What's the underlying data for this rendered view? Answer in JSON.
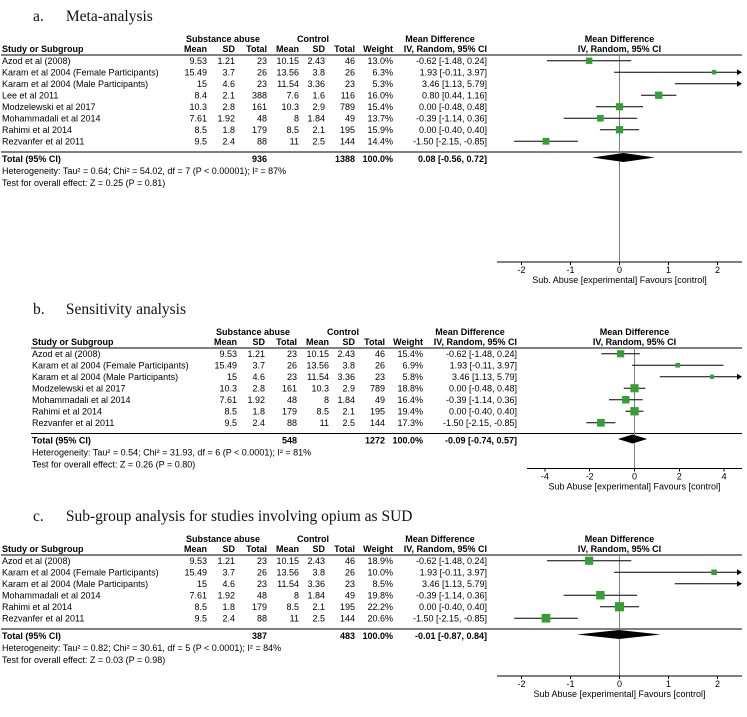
{
  "colors": {
    "marker_square": "#33a033",
    "ci_line": "#000000",
    "diamond": "#000000",
    "rule": "#000000",
    "zero_line": "#808080",
    "axis": "#000000"
  },
  "chart_data": [
    {
      "type": "forest",
      "panel_label": "a.",
      "panel_title": "Meta-analysis",
      "header": {
        "group1": "Substance abuse",
        "group2": "Control",
        "study_col": "Study or Subgroup",
        "subcols": [
          "Mean",
          "SD",
          "Total",
          "Mean",
          "SD",
          "Total",
          "Weight"
        ],
        "effect_col_line1": "Mean Difference",
        "effect_col_line2": "IV, Random, 95% CI",
        "plot_col_line1": "Mean Difference",
        "plot_col_line2": "IV, Random, 95% CI"
      },
      "studies": [
        {
          "name": "Azod et al (2008)",
          "mean1": "9.53",
          "sd1": "1.21",
          "total1": "23",
          "mean2": "10.15",
          "sd2": "2.43",
          "total2": "46",
          "weight": "13.0%",
          "weight_pct": 13.0,
          "ci_label": "-0.62 [-1.48, 0.24]",
          "est": -0.62,
          "lo": -1.48,
          "hi": 0.24
        },
        {
          "name": "Karam et al 2004 (Female Participants)",
          "mean1": "15.49",
          "sd1": "3.7",
          "total1": "26",
          "mean2": "13.56",
          "sd2": "3.8",
          "total2": "26",
          "weight": "6.3%",
          "weight_pct": 6.3,
          "ci_label": "1.93 [-0.11, 3.97]",
          "est": 1.93,
          "lo": -0.11,
          "hi": 3.97
        },
        {
          "name": "Karam et al 2004 (Male Participants)",
          "mean1": "15",
          "sd1": "4.6",
          "total1": "23",
          "mean2": "11.54",
          "sd2": "3.36",
          "total2": "23",
          "weight": "5.3%",
          "weight_pct": 5.3,
          "ci_label": "3.46 [1.13, 5.79]",
          "est": 3.46,
          "lo": 1.13,
          "hi": 5.79
        },
        {
          "name": "Lee et al 2011",
          "mean1": "8.4",
          "sd1": "2.1",
          "total1": "388",
          "mean2": "7.6",
          "sd2": "1.6",
          "total2": "116",
          "weight": "16.0%",
          "weight_pct": 16.0,
          "ci_label": "0.80 [0.44, 1.16]",
          "est": 0.8,
          "lo": 0.44,
          "hi": 1.16
        },
        {
          "name": "Modzelewski et al 2017",
          "mean1": "10.3",
          "sd1": "2.8",
          "total1": "161",
          "mean2": "10.3",
          "sd2": "2.9",
          "total2": "789",
          "weight": "15.4%",
          "weight_pct": 15.4,
          "ci_label": "0.00 [-0.48, 0.48]",
          "est": 0.0,
          "lo": -0.48,
          "hi": 0.48
        },
        {
          "name": "Mohammadali et al 2014",
          "mean1": "7.61",
          "sd1": "1.92",
          "total1": "48",
          "mean2": "8",
          "sd2": "1.84",
          "total2": "49",
          "weight": "13.7%",
          "weight_pct": 13.7,
          "ci_label": "-0.39 [-1.14, 0.36]",
          "est": -0.39,
          "lo": -1.14,
          "hi": 0.36
        },
        {
          "name": "Rahimi et al 2014",
          "mean1": "8.5",
          "sd1": "1.8",
          "total1": "179",
          "mean2": "8.5",
          "sd2": "2.1",
          "total2": "195",
          "weight": "15.9%",
          "weight_pct": 15.9,
          "ci_label": "0.00 [-0.40, 0.40]",
          "est": 0.0,
          "lo": -0.4,
          "hi": 0.4
        },
        {
          "name": "Rezvanfer et al 2011",
          "mean1": "9.5",
          "sd1": "2.4",
          "total1": "88",
          "mean2": "11",
          "sd2": "2.5",
          "total2": "144",
          "weight": "14.4%",
          "weight_pct": 14.4,
          "ci_label": "-1.50 [-2.15, -0.85]",
          "est": -1.5,
          "lo": -2.15,
          "hi": -0.85
        }
      ],
      "total_row": {
        "label": "Total (95% CI)",
        "total1": "936",
        "total2": "1388",
        "weight": "100.0%",
        "ci_label": "0.08 [-0.56, 0.72]",
        "est": 0.08,
        "lo": -0.56,
        "hi": 0.72
      },
      "heterogeneity": "Heterogeneity: Tau² = 0.64; Chi² = 54.02, df = 7 (P < 0.00001); I² = 87%",
      "overall_effect": "Test for overall effect: Z = 0.25 (P = 0.81)",
      "axis": {
        "ticks": [
          -2,
          -1,
          0,
          1,
          2
        ],
        "min": -2.5,
        "max": 2.5,
        "caption": "Sub. Abuse [experimental]   Favours [control]"
      }
    },
    {
      "type": "forest",
      "panel_label": "b.",
      "panel_title": "Sensitivity analysis",
      "header": {
        "group1": "Substance abuse",
        "group2": "Control",
        "study_col": "Study or Subgroup",
        "subcols": [
          "Mean",
          "SD",
          "Total",
          "Mean",
          "SD",
          "Total",
          "Weight"
        ],
        "effect_col_line1": "Mean Difference",
        "effect_col_line2": "IV, Random, 95% CI",
        "plot_col_line1": "Mean Difference",
        "plot_col_line2": "IV, Random, 95% CI"
      },
      "studies": [
        {
          "name": "Azod et al (2008)",
          "mean1": "9.53",
          "sd1": "1.21",
          "total1": "23",
          "mean2": "10.15",
          "sd2": "2.43",
          "total2": "46",
          "weight": "15.4%",
          "weight_pct": 15.4,
          "ci_label": "-0.62 [-1.48, 0.24]",
          "est": -0.62,
          "lo": -1.48,
          "hi": 0.24
        },
        {
          "name": "Karam et al 2004 (Female Participants)",
          "mean1": "15.49",
          "sd1": "3.7",
          "total1": "26",
          "mean2": "13.56",
          "sd2": "3.8",
          "total2": "26",
          "weight": "6.9%",
          "weight_pct": 6.9,
          "ci_label": "1.93 [-0.11, 3.97]",
          "est": 1.93,
          "lo": -0.11,
          "hi": 3.97
        },
        {
          "name": "Karam et al 2004 (Male Participants)",
          "mean1": "15",
          "sd1": "4.6",
          "total1": "23",
          "mean2": "11.54",
          "sd2": "3.36",
          "total2": "23",
          "weight": "5.8%",
          "weight_pct": 5.8,
          "ci_label": "3.46 [1.13, 5.79]",
          "est": 3.46,
          "lo": 1.13,
          "hi": 5.79
        },
        {
          "name": "Modzelewski et al 2017",
          "mean1": "10.3",
          "sd1": "2.8",
          "total1": "161",
          "mean2": "10.3",
          "sd2": "2.9",
          "total2": "789",
          "weight": "18.8%",
          "weight_pct": 18.8,
          "ci_label": "0.00 [-0.48, 0.48]",
          "est": 0.0,
          "lo": -0.48,
          "hi": 0.48
        },
        {
          "name": "Mohammadali et al 2014",
          "mean1": "7.61",
          "sd1": "1.92",
          "total1": "48",
          "mean2": "8",
          "sd2": "1.84",
          "total2": "49",
          "weight": "16.4%",
          "weight_pct": 16.4,
          "ci_label": "-0.39 [-1.14, 0.36]",
          "est": -0.39,
          "lo": -1.14,
          "hi": 0.36
        },
        {
          "name": "Rahimi et al 2014",
          "mean1": "8.5",
          "sd1": "1.8",
          "total1": "179",
          "mean2": "8.5",
          "sd2": "2.1",
          "total2": "195",
          "weight": "19.4%",
          "weight_pct": 19.4,
          "ci_label": "0.00 [-0.40, 0.40]",
          "est": 0.0,
          "lo": -0.4,
          "hi": 0.4
        },
        {
          "name": "Rezvanfer et al 2011",
          "mean1": "9.5",
          "sd1": "2.4",
          "total1": "88",
          "mean2": "11",
          "sd2": "2.5",
          "total2": "144",
          "weight": "17.3%",
          "weight_pct": 17.3,
          "ci_label": "-1.50 [-2.15, -0.85]",
          "est": -1.5,
          "lo": -2.15,
          "hi": -0.85
        }
      ],
      "total_row": {
        "label": "Total (95% CI)",
        "total1": "548",
        "total2": "1272",
        "weight": "100.0%",
        "ci_label": "-0.09 [-0.74, 0.57]",
        "est": -0.09,
        "lo": -0.74,
        "hi": 0.57
      },
      "heterogeneity": "Heterogeneity: Tau² = 0.54; Chi² = 31.93, df = 6 (P < 0.0001); I² = 81%",
      "overall_effect": "Test for overall effect: Z = 0.26 (P = 0.80)",
      "axis": {
        "ticks": [
          -4,
          -2,
          0,
          2,
          4
        ],
        "min": -4.8,
        "max": 4.8,
        "caption": "Sub Abuse [experimental]   Favours [control]"
      }
    },
    {
      "type": "forest",
      "panel_label": "c.",
      "panel_title": "Sub-group analysis for studies involving opium as SUD",
      "header": {
        "group1": "Substance abuse",
        "group2": "Control",
        "study_col": "Study or Subgroup",
        "subcols": [
          "Mean",
          "SD",
          "Total",
          "Mean",
          "SD",
          "Total",
          "Weight"
        ],
        "effect_col_line1": "Mean Difference",
        "effect_col_line2": "IV, Random, 95% CI",
        "plot_col_line1": "Mean Difference",
        "plot_col_line2": "IV, Random, 95% CI"
      },
      "studies": [
        {
          "name": "Azod et al (2008)",
          "mean1": "9.53",
          "sd1": "1.21",
          "total1": "23",
          "mean2": "10.15",
          "sd2": "2.43",
          "total2": "46",
          "weight": "18.9%",
          "weight_pct": 18.9,
          "ci_label": "-0.62 [-1.48, 0.24]",
          "est": -0.62,
          "lo": -1.48,
          "hi": 0.24
        },
        {
          "name": "Karam et al 2004 (Female Participants)",
          "mean1": "15.49",
          "sd1": "3.7",
          "total1": "26",
          "mean2": "13.56",
          "sd2": "3.8",
          "total2": "26",
          "weight": "10.0%",
          "weight_pct": 10.0,
          "ci_label": "1.93 [-0.11, 3.97]",
          "est": 1.93,
          "lo": -0.11,
          "hi": 3.97
        },
        {
          "name": "Karam et al 2004 (Male Participants)",
          "mean1": "15",
          "sd1": "4.6",
          "total1": "23",
          "mean2": "11.54",
          "sd2": "3.36",
          "total2": "23",
          "weight": "8.5%",
          "weight_pct": 8.5,
          "ci_label": "3.46 [1.13, 5.79]",
          "est": 3.46,
          "lo": 1.13,
          "hi": 5.79
        },
        {
          "name": "Mohammadali et al 2014",
          "mean1": "7.61",
          "sd1": "1.92",
          "total1": "48",
          "mean2": "8",
          "sd2": "1.84",
          "total2": "49",
          "weight": "19.8%",
          "weight_pct": 19.8,
          "ci_label": "-0.39 [-1.14, 0.36]",
          "est": -0.39,
          "lo": -1.14,
          "hi": 0.36
        },
        {
          "name": "Rahimi et al 2014",
          "mean1": "8.5",
          "sd1": "1.8",
          "total1": "179",
          "mean2": "8.5",
          "sd2": "2.1",
          "total2": "195",
          "weight": "22.2%",
          "weight_pct": 22.2,
          "ci_label": "0.00 [-0.40, 0.40]",
          "est": 0.0,
          "lo": -0.4,
          "hi": 0.4
        },
        {
          "name": "Rezvanfer et al 2011",
          "mean1": "9.5",
          "sd1": "2.4",
          "total1": "88",
          "mean2": "11",
          "sd2": "2.5",
          "total2": "144",
          "weight": "20.6%",
          "weight_pct": 20.6,
          "ci_label": "-1.50 [-2.15, -0.85]",
          "est": -1.5,
          "lo": -2.15,
          "hi": -0.85
        }
      ],
      "total_row": {
        "label": "Total (95% CI)",
        "total1": "387",
        "total2": "483",
        "weight": "100.0%",
        "ci_label": "-0.01 [-0.87, 0.84]",
        "est": -0.01,
        "lo": -0.87,
        "hi": 0.84
      },
      "heterogeneity": "Heterogeneity: Tau² = 0.82; Chi² = 30.61, df = 5 (P < 0.0001); I² = 84%",
      "overall_effect": "Test for overall effect: Z = 0.03 (P = 0.98)",
      "axis": {
        "ticks": [
          -2,
          -1,
          0,
          1,
          2
        ],
        "min": -2.5,
        "max": 2.5,
        "caption": "Sub Abuse [experimental]   Favours [control]"
      }
    }
  ]
}
